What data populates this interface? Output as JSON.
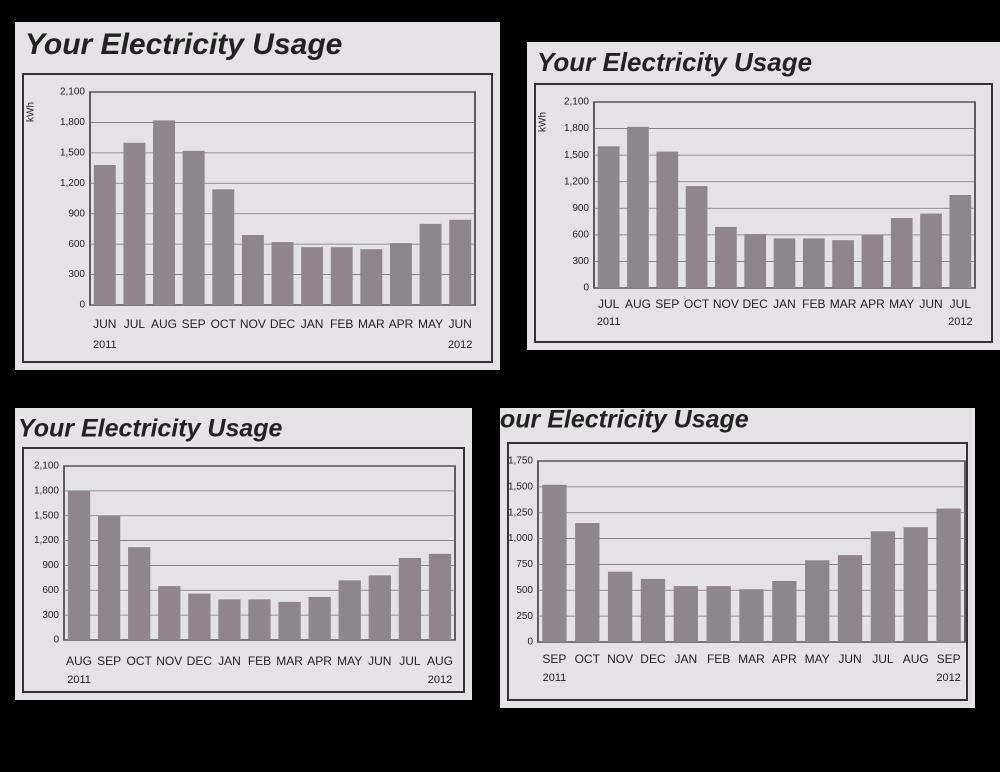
{
  "chart_data": [
    {
      "type": "bar",
      "title": "Your Electricity Usage",
      "ylabel": "kWh",
      "categories": [
        "JUN",
        "JUL",
        "AUG",
        "SEP",
        "OCT",
        "NOV",
        "DEC",
        "JAN",
        "FEB",
        "MAR",
        "APR",
        "MAY",
        "JUN"
      ],
      "values": [
        1380,
        1600,
        1820,
        1520,
        1140,
        690,
        620,
        570,
        570,
        550,
        610,
        800,
        840
      ],
      "start_year": "2011",
      "end_year": "2012",
      "color": "#8e868a",
      "ylim": [
        0,
        2100
      ],
      "yticks": [
        0,
        300,
        600,
        900,
        {
          "value": 1200,
          "label": "1,200"
        },
        {
          "value": 1500,
          "label": "1,500"
        },
        {
          "value": 1800,
          "label": "1,800"
        },
        {
          "value": 2100,
          "label": "2,100"
        }
      ],
      "grid": true
    },
    {
      "type": "bar",
      "title": "Your Electricity Usage",
      "ylabel": "kWh",
      "categories": [
        "JUL",
        "AUG",
        "SEP",
        "OCT",
        "NOV",
        "DEC",
        "JAN",
        "FEB",
        "MAR",
        "APR",
        "MAY",
        "JUN",
        "JUL"
      ],
      "values": [
        1600,
        1820,
        1540,
        1150,
        690,
        610,
        560,
        560,
        540,
        600,
        790,
        840,
        1050
      ],
      "start_year": "2011",
      "end_year": "2012",
      "color": "#8e868a",
      "ylim": [
        0,
        2100
      ],
      "yticks": [
        0,
        300,
        600,
        900,
        {
          "value": 1200,
          "label": "1,200"
        },
        {
          "value": 1500,
          "label": "1,500"
        },
        {
          "value": 1800,
          "label": "1,800"
        },
        {
          "value": 2100,
          "label": "2,100"
        }
      ],
      "grid": true
    },
    {
      "type": "bar",
      "title": "Your Electricity Usage",
      "categories": [
        "AUG",
        "SEP",
        "OCT",
        "NOV",
        "DEC",
        "JAN",
        "FEB",
        "MAR",
        "APR",
        "MAY",
        "JUN",
        "JUL",
        "AUG"
      ],
      "values": [
        1800,
        1500,
        1120,
        650,
        560,
        490,
        490,
        460,
        520,
        720,
        780,
        990,
        1040
      ],
      "start_year": "2011",
      "end_year": "2012",
      "color": "#8e868a",
      "ylim": [
        0,
        2100
      ],
      "yticks": [
        0,
        300,
        600,
        900,
        {
          "value": 1200,
          "label": "1,200"
        },
        {
          "value": 1500,
          "label": "1,500"
        },
        {
          "value": 1800,
          "label": "1,800"
        },
        {
          "value": 2100,
          "label": "2,100"
        }
      ],
      "grid": true
    },
    {
      "type": "bar",
      "title": "our Electricity Usage",
      "categories": [
        "SEP",
        "OCT",
        "NOV",
        "DEC",
        "JAN",
        "FEB",
        "MAR",
        "APR",
        "MAY",
        "JUN",
        "JUL",
        "AUG",
        "SEP"
      ],
      "values": [
        1520,
        1150,
        680,
        610,
        540,
        540,
        510,
        590,
        790,
        840,
        1070,
        1110,
        1290
      ],
      "start_year": "2011",
      "end_year": "2012",
      "color": "#8e868a",
      "ylim": [
        0,
        1750
      ],
      "yticks": [
        0,
        250,
        500,
        750,
        {
          "value": 1000,
          "label": "1,000"
        },
        {
          "value": 1250,
          "label": "1,250"
        },
        {
          "value": 1500,
          "label": "1,500"
        },
        {
          "value": 1750,
          "label": "1,750"
        }
      ],
      "grid": true
    }
  ]
}
